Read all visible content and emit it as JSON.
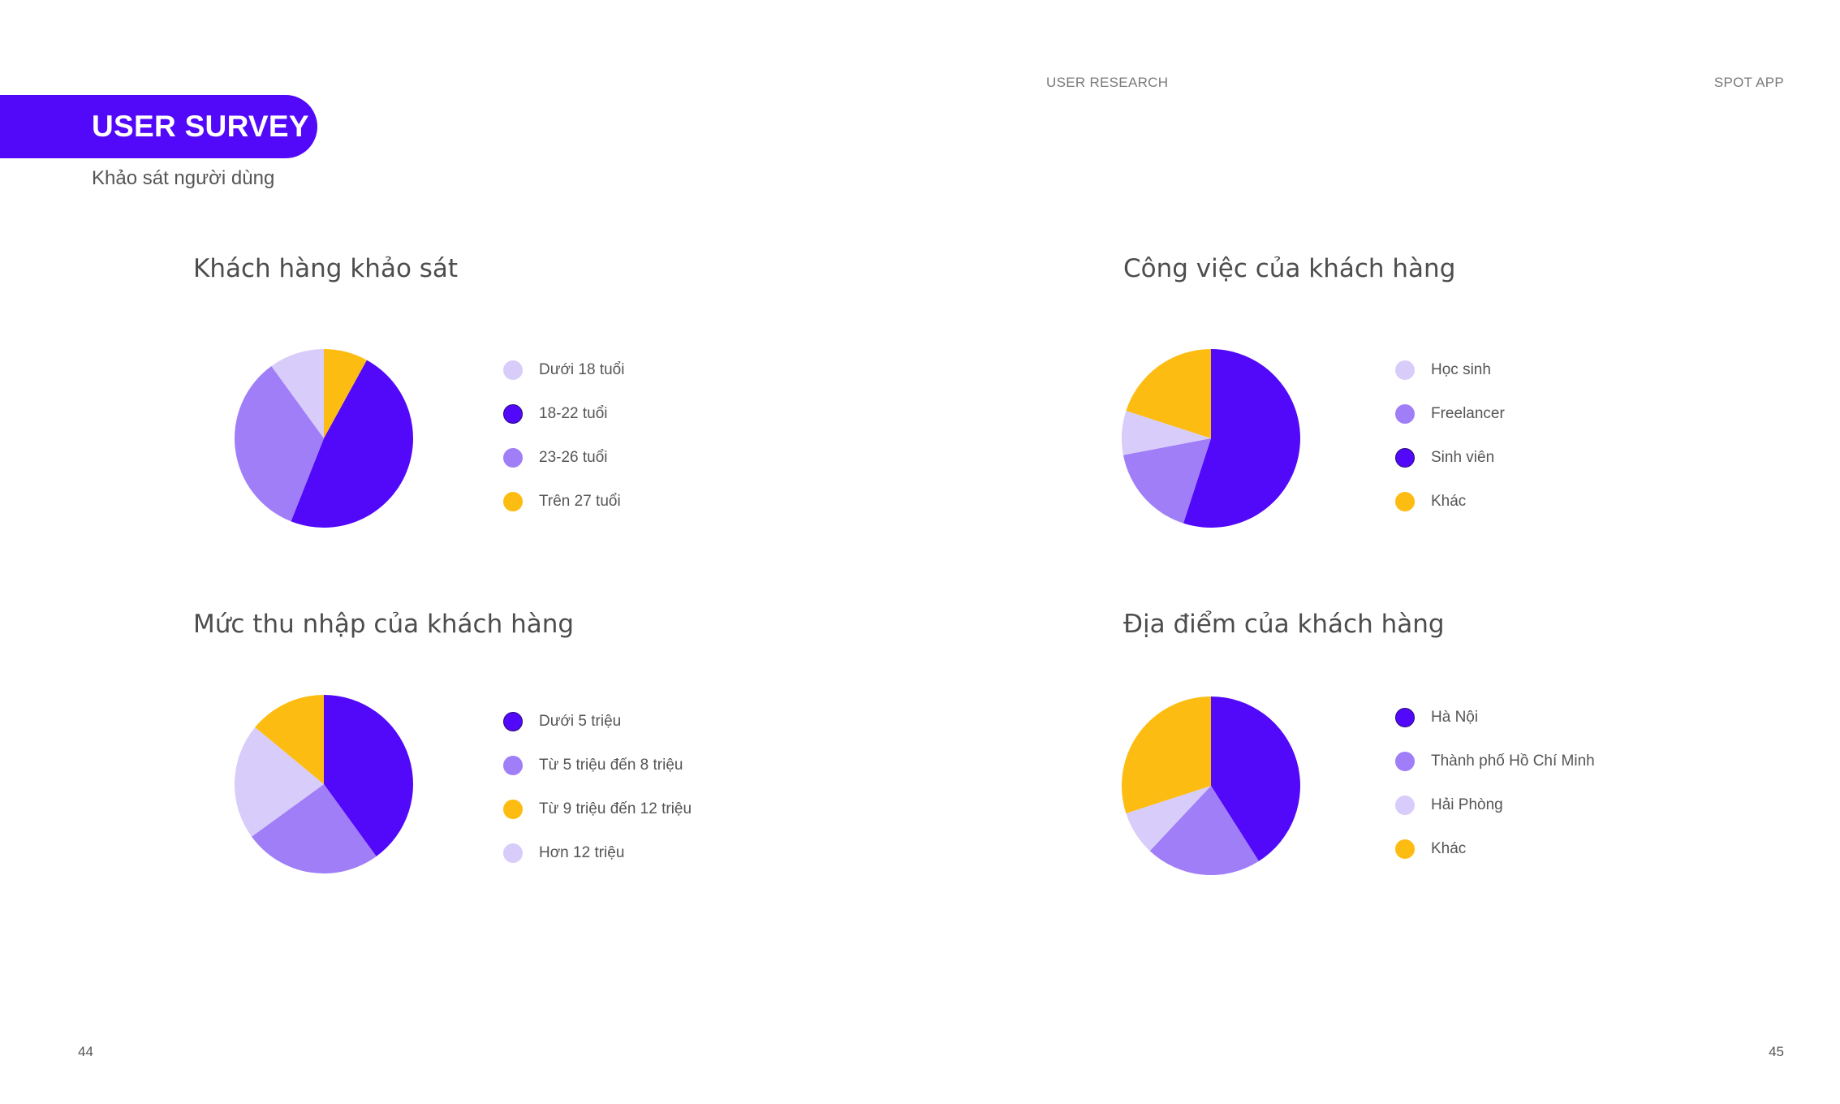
{
  "header": {
    "section_label": "USER RESEARCH",
    "app_label": "SPOT APP"
  },
  "survey": {
    "title": "USER SURVEY",
    "subtitle": "Khảo sát người dùng"
  },
  "colors": {
    "accent": "#5209f9",
    "medium_purple": "#a07ef8",
    "light_purple": "#d8ccfa",
    "yellow": "#fdbc11"
  },
  "chart_data": [
    {
      "type": "pie",
      "title": "Khách hàng khảo sát",
      "slices": [
        {
          "label": "Trên 27 tuổi",
          "value": 8,
          "color": "#fdbc11"
        },
        {
          "label": "18-22 tuổi",
          "value": 48,
          "color": "#5209f9"
        },
        {
          "label": "23-26 tuổi",
          "value": 34,
          "color": "#a07ef8"
        },
        {
          "label": "Dưới 18 tuổi",
          "value": 10,
          "color": "#d8ccfa"
        }
      ],
      "legend": [
        {
          "label": "Dưới 18 tuổi",
          "color": "#d8ccfa"
        },
        {
          "label": "18-22 tuổi",
          "color": "#5209f9"
        },
        {
          "label": "23-26 tuổi",
          "color": "#a07ef8"
        },
        {
          "label": "Trên 27 tuổi",
          "color": "#fdbc11"
        }
      ]
    },
    {
      "type": "pie",
      "title": "Công việc của khách hàng",
      "slices": [
        {
          "label": "Sinh viên",
          "value": 55,
          "color": "#5209f9"
        },
        {
          "label": "Freelancer",
          "value": 17,
          "color": "#a07ef8"
        },
        {
          "label": "Học sinh",
          "value": 8,
          "color": "#d8ccfa"
        },
        {
          "label": "Khác",
          "value": 20,
          "color": "#fdbc11"
        }
      ],
      "legend": [
        {
          "label": "Học sinh",
          "color": "#d8ccfa"
        },
        {
          "label": "Freelancer",
          "color": "#a07ef8"
        },
        {
          "label": "Sinh viên",
          "color": "#5209f9"
        },
        {
          "label": "Khác",
          "color": "#fdbc11"
        }
      ]
    },
    {
      "type": "pie",
      "title": "Mức thu nhập của khách hàng",
      "slices": [
        {
          "label": "Dưới 5 triệu",
          "value": 40,
          "color": "#5209f9"
        },
        {
          "label": "Từ 5 triệu đến 8 triệu",
          "value": 25,
          "color": "#a07ef8"
        },
        {
          "label": "Hơn 12 triệu",
          "value": 21,
          "color": "#d8ccfa"
        },
        {
          "label": "Từ 9 triệu đến 12 triệu",
          "value": 14,
          "color": "#fdbc11"
        }
      ],
      "legend": [
        {
          "label": "Dưới 5 triệu",
          "color": "#5209f9"
        },
        {
          "label": "Từ 5 triệu đến 8 triệu",
          "color": "#a07ef8"
        },
        {
          "label": "Từ 9 triệu đến 12 triệu",
          "color": "#fdbc11"
        },
        {
          "label": "Hơn 12 triệu",
          "color": "#d8ccfa"
        }
      ]
    },
    {
      "type": "pie",
      "title": "Địa điểm của khách hàng",
      "slices": [
        {
          "label": "Hà Nội",
          "value": 41,
          "color": "#5209f9"
        },
        {
          "label": "Thành phố Hồ Chí Minh",
          "value": 21,
          "color": "#a07ef8"
        },
        {
          "label": "Hải Phòng",
          "value": 8,
          "color": "#d8ccfa"
        },
        {
          "label": "Khác",
          "value": 30,
          "color": "#fdbc11"
        }
      ],
      "legend": [
        {
          "label": "Hà Nội",
          "color": "#5209f9"
        },
        {
          "label": "Thành phố Hồ Chí Minh",
          "color": "#a07ef8"
        },
        {
          "label": "Hải Phòng",
          "color": "#d8ccfa"
        },
        {
          "label": "Khác",
          "color": "#fdbc11"
        }
      ]
    }
  ],
  "footer": {
    "page_left": "44",
    "page_right": "45"
  }
}
